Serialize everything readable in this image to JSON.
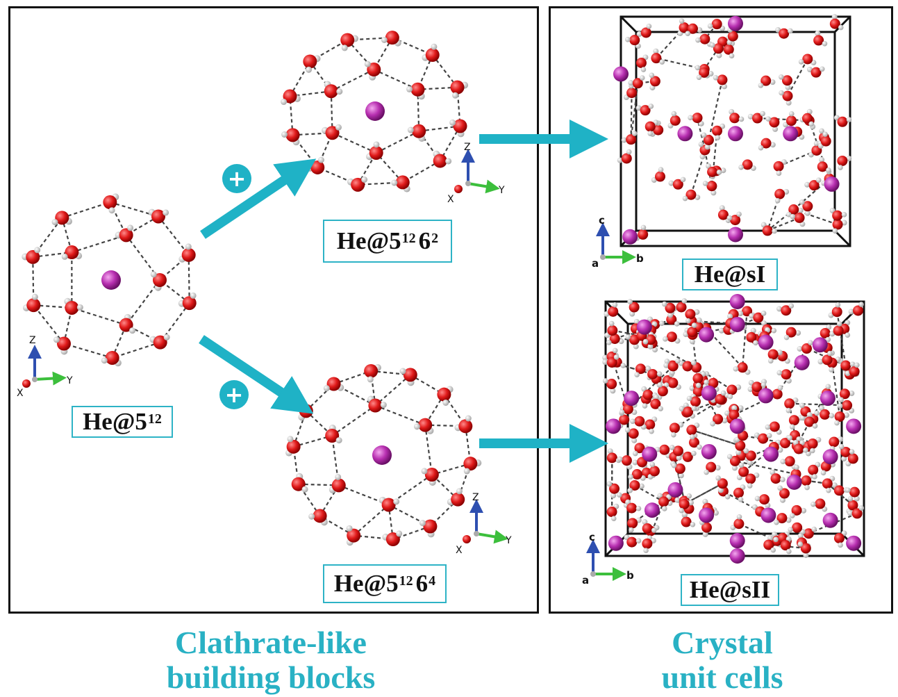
{
  "labels": {
    "he512": {
      "base": "He@5",
      "sup1": "12"
    },
    "he51262": {
      "base": "He@5",
      "sup1": "12",
      "mid": "6",
      "sup2": "2"
    },
    "he51264": {
      "base": "He@5",
      "sup1": "12",
      "mid": "6",
      "sup2": "4"
    },
    "hesI": "He@sI",
    "hesII": "He@sII"
  },
  "axes_molecular": {
    "z": "Z",
    "y": "Y",
    "x": "X"
  },
  "axes_crystal": {
    "c": "c",
    "b": "b",
    "a": "a"
  },
  "plus_symbol": "+",
  "captions": {
    "left": [
      "Clathrate-like",
      "building blocks"
    ],
    "right": [
      "Crystal",
      "unit cells"
    ]
  },
  "colors": {
    "accent": "#1fb2c6",
    "oxygen": "#e01a1a",
    "hydrogen": "#e6e6e6",
    "helium": "#b72fb0",
    "axis_z": "#2e4fb0",
    "axis_y": "#3cbf3c",
    "axis_x": "#d01b1b"
  }
}
